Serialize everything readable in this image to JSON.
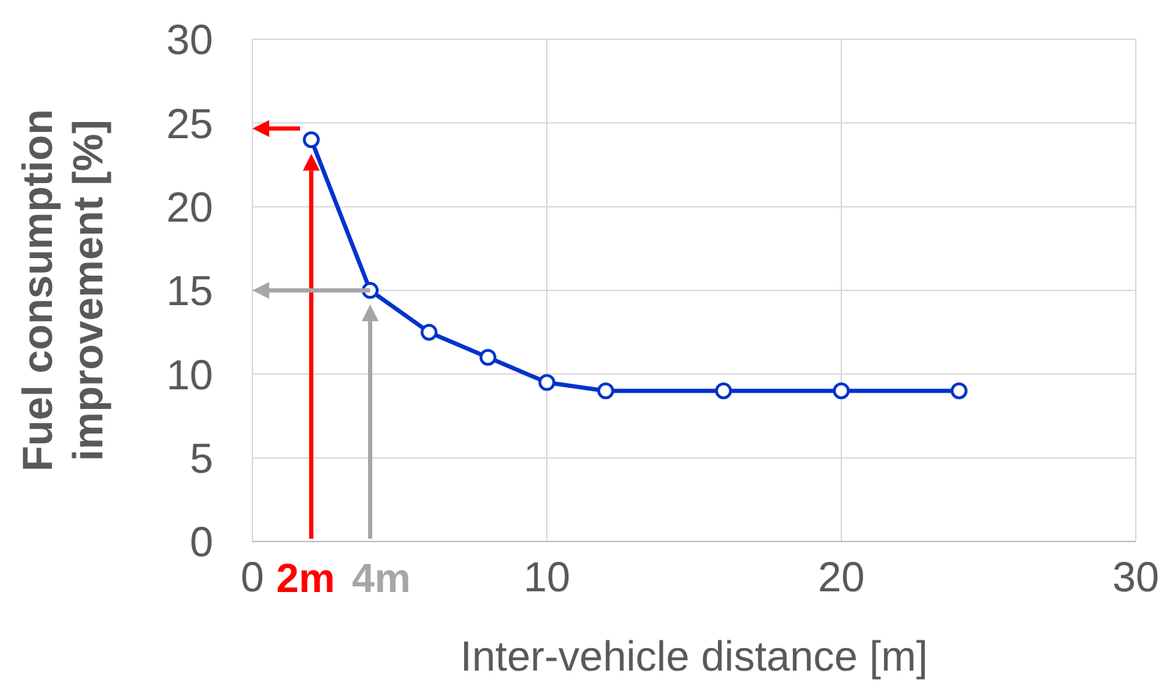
{
  "chart_data": {
    "type": "line",
    "xlabel": "Inter-vehicle distance [m]",
    "ylabel": "Fuel consumption improvement [%]",
    "x": [
      2,
      4,
      6,
      8,
      10,
      12,
      16,
      20,
      24
    ],
    "series": [
      {
        "color": "#0033cc",
        "values": [
          24,
          15,
          12.5,
          11,
          9.5,
          9,
          9,
          9,
          9
        ]
      }
    ],
    "xlim": [
      0,
      30
    ],
    "xticks": [
      0,
      10,
      20,
      30
    ],
    "ylim": [
      0,
      30
    ],
    "yticks": [
      0,
      5,
      10,
      15,
      20,
      25,
      30
    ],
    "grid": true,
    "marker": "circle",
    "line_style": "solid",
    "legend": false,
    "annotations": [
      "2m",
      "4m"
    ]
  }
}
